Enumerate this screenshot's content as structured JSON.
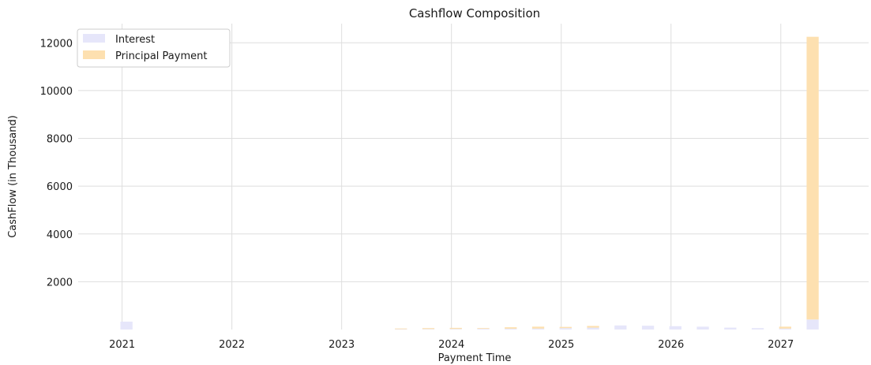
{
  "chart_data": {
    "type": "bar",
    "stacked": true,
    "title": "Cashflow Composition",
    "xlabel": "Payment Time",
    "ylabel": "CashFlow (in Thousand)",
    "xlim": [
      2020.6,
      2027.8
    ],
    "ylim": [
      0,
      12800
    ],
    "x_ticks": [
      "2021",
      "2022",
      "2023",
      "2024",
      "2025",
      "2026",
      "2027"
    ],
    "y_ticks": [
      "2000",
      "4000",
      "6000",
      "8000",
      "10000",
      "12000"
    ],
    "grid": true,
    "legend_position": "top-left",
    "bar_width_years": 0.11,
    "series": [
      {
        "name": "Interest",
        "color": "#e6e6fa",
        "x": [
          2021.04,
          2023.54,
          2023.79,
          2024.04,
          2024.29,
          2024.54,
          2024.79,
          2025.04,
          2025.29,
          2025.54,
          2025.79,
          2026.04,
          2026.29,
          2026.54,
          2026.79,
          2027.04,
          2027.29
        ],
        "values": [
          330,
          15,
          20,
          25,
          30,
          35,
          40,
          60,
          80,
          170,
          160,
          140,
          120,
          80,
          60,
          40,
          420
        ]
      },
      {
        "name": "Principal Payment",
        "color": "#fde0b0",
        "x": [
          2021.04,
          2023.54,
          2023.79,
          2024.04,
          2024.29,
          2024.54,
          2024.79,
          2025.04,
          2025.29,
          2025.54,
          2025.79,
          2026.04,
          2026.29,
          2026.54,
          2026.79,
          2027.04,
          2027.29
        ],
        "values": [
          0,
          30,
          40,
          45,
          30,
          60,
          80,
          50,
          70,
          0,
          0,
          0,
          0,
          0,
          0,
          80,
          11830
        ]
      }
    ]
  }
}
